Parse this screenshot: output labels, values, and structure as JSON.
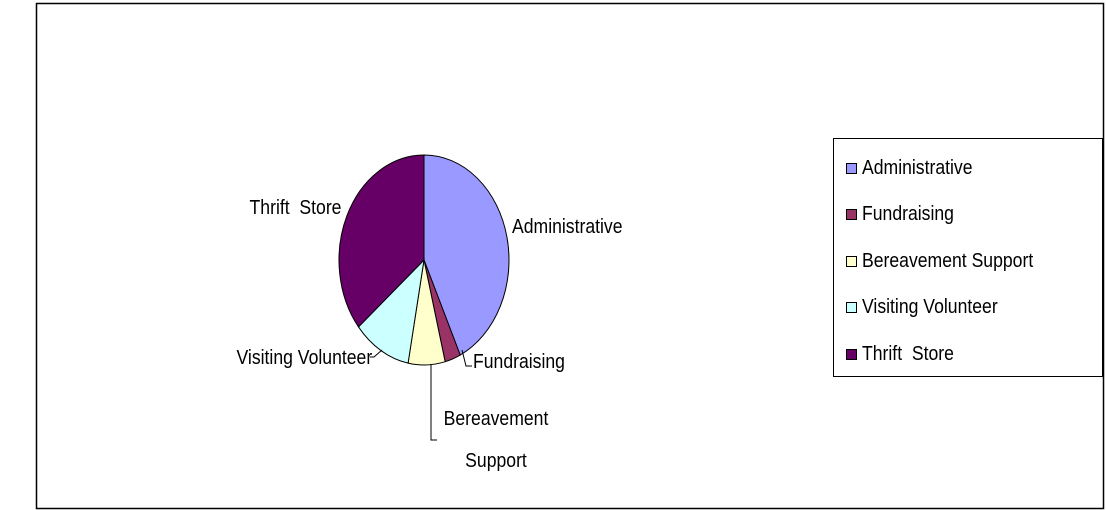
{
  "chart_data": {
    "type": "pie",
    "categories": [
      "Administrative",
      "Fundraising",
      "Bereavement Support",
      "Visiting Volunteer",
      "Thrift  Store"
    ],
    "values": [
      43,
      3,
      7,
      11,
      36
    ],
    "colors": [
      "#9999ff",
      "#993366",
      "#ffffcc",
      "#ccffff",
      "#660066"
    ],
    "legend": "right"
  }
}
